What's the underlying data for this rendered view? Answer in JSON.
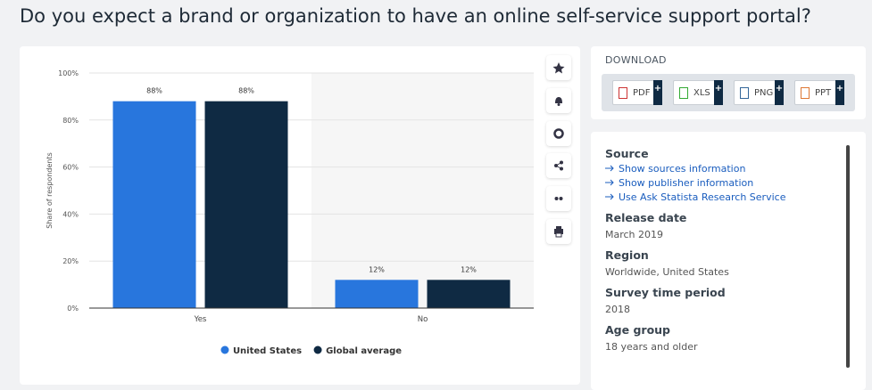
{
  "chart_data": {
    "type": "bar",
    "title": "Do you expect a brand or organization to have an online self-service support portal?",
    "y_label": "Share of respondents",
    "categories": [
      "Yes",
      "No"
    ],
    "series": [
      {
        "name": "United States",
        "color": "#2876dd",
        "values": [
          88,
          12
        ],
        "value_labels": [
          "88%",
          "12%"
        ]
      },
      {
        "name": "Global average",
        "color": "#0f2a43",
        "values": [
          88,
          12
        ],
        "value_labels": [
          "88%",
          "12%"
        ]
      }
    ],
    "ylim": [
      0,
      100
    ],
    "yticks": [
      {
        "value": 0,
        "label": "0%"
      },
      {
        "value": 20,
        "label": "20%"
      },
      {
        "value": 40,
        "label": "40%"
      },
      {
        "value": 60,
        "label": "60%"
      },
      {
        "value": 80,
        "label": "80%"
      },
      {
        "value": 100,
        "label": "100%"
      }
    ],
    "grid": true
  },
  "sidebar": {
    "download_label": "DOWNLOAD",
    "downloads": [
      "PDF",
      "XLS",
      "PNG",
      "PPT"
    ],
    "source_heading": "Source",
    "source_links": [
      "Show sources information",
      "Show publisher information",
      "Use Ask Statista Research Service"
    ],
    "sections": [
      {
        "heading": "Release date",
        "text": "March 2019"
      },
      {
        "heading": "Region",
        "text": "Worldwide, United States"
      },
      {
        "heading": "Survey time period",
        "text": "2018"
      },
      {
        "heading": "Age group",
        "text": "18 years and older"
      }
    ]
  }
}
